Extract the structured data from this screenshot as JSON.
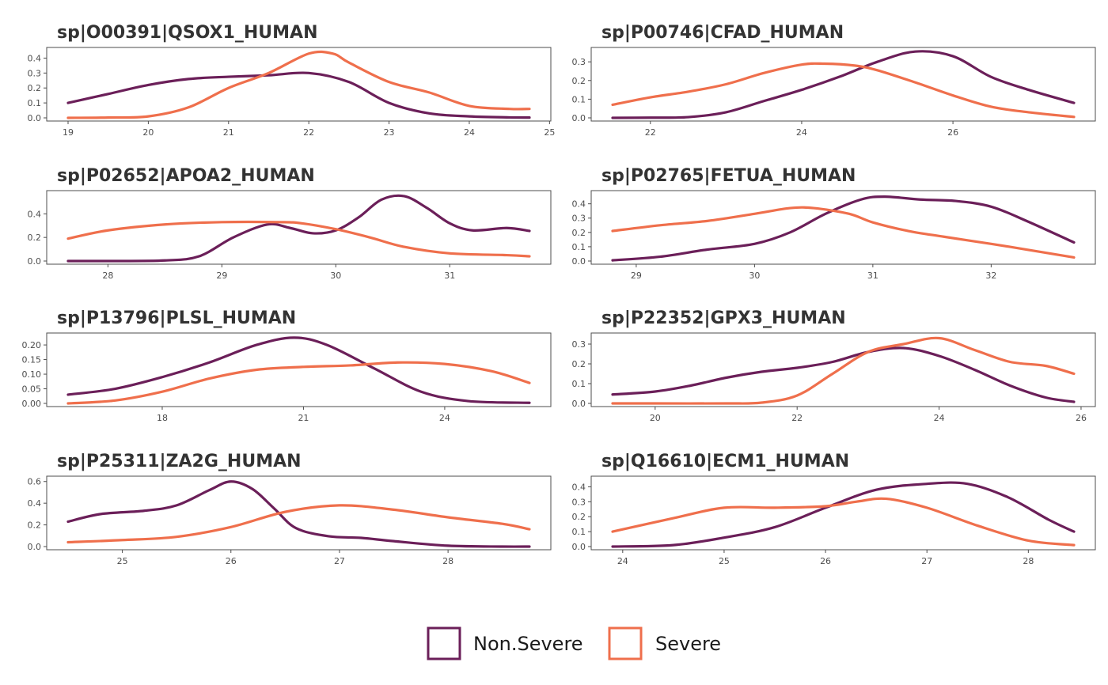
{
  "colors": {
    "non_severe": "#6b1f59",
    "severe": "#ef6f4c"
  },
  "legend": {
    "items": [
      {
        "label": "Non.Severe",
        "color": "#6b1f59"
      },
      {
        "label": "Severe",
        "color": "#ef6f4c"
      }
    ]
  },
  "chart_data": [
    {
      "type": "line",
      "title": "sp|O00391|QSOX1_HUMAN",
      "xlim": [
        19.0,
        24.75
      ],
      "ylim": [
        0,
        0.45
      ],
      "xticks": [
        19,
        20,
        21,
        22,
        23,
        24,
        25
      ],
      "yticks": [
        0.0,
        0.1,
        0.2,
        0.3,
        0.4
      ],
      "ytick_labels": [
        "0.0",
        "0.1",
        "0.2",
        "0.3",
        "0.4"
      ],
      "series": [
        {
          "name": "Non.Severe",
          "x": [
            19.0,
            19.5,
            20.0,
            20.5,
            21.0,
            21.5,
            22.0,
            22.5,
            23.0,
            23.5,
            24.0,
            24.5,
            24.75
          ],
          "y": [
            0.1,
            0.16,
            0.22,
            0.26,
            0.275,
            0.285,
            0.3,
            0.24,
            0.1,
            0.03,
            0.01,
            0.003,
            0.002
          ]
        },
        {
          "name": "Severe",
          "x": [
            19.0,
            19.5,
            20.0,
            20.5,
            21.0,
            21.5,
            22.0,
            22.3,
            22.5,
            23.0,
            23.5,
            24.0,
            24.5,
            24.75
          ],
          "y": [
            0.0,
            0.002,
            0.01,
            0.07,
            0.2,
            0.3,
            0.43,
            0.43,
            0.37,
            0.24,
            0.17,
            0.08,
            0.06,
            0.06
          ]
        }
      ]
    },
    {
      "type": "line",
      "title": "sp|P00746|CFAD_HUMAN",
      "xlim": [
        21.5,
        27.6
      ],
      "ylim": [
        0,
        0.36
      ],
      "xticks": [
        22,
        24,
        26
      ],
      "yticks": [
        0.0,
        0.1,
        0.2,
        0.3
      ],
      "ytick_labels": [
        "0.0",
        "0.1",
        "0.2",
        "0.3"
      ],
      "series": [
        {
          "name": "Non.Severe",
          "x": [
            21.5,
            22.0,
            22.5,
            23.0,
            23.5,
            24.0,
            24.5,
            25.0,
            25.5,
            26.0,
            26.5,
            27.0,
            27.6
          ],
          "y": [
            0.0,
            0.001,
            0.004,
            0.03,
            0.09,
            0.15,
            0.22,
            0.3,
            0.355,
            0.33,
            0.22,
            0.15,
            0.08
          ]
        },
        {
          "name": "Severe",
          "x": [
            21.5,
            22.0,
            22.5,
            23.0,
            23.5,
            24.0,
            24.3,
            24.7,
            25.0,
            25.5,
            26.0,
            26.5,
            27.0,
            27.6
          ],
          "y": [
            0.07,
            0.11,
            0.14,
            0.18,
            0.24,
            0.285,
            0.29,
            0.28,
            0.255,
            0.19,
            0.12,
            0.06,
            0.03,
            0.005
          ]
        }
      ]
    },
    {
      "type": "line",
      "title": "sp|P02652|APOA2_HUMAN",
      "xlim": [
        27.65,
        31.7
      ],
      "ylim": [
        0,
        0.57
      ],
      "xticks": [
        28,
        29,
        30,
        31
      ],
      "yticks": [
        0.0,
        0.2,
        0.4
      ],
      "ytick_labels": [
        "0.0",
        "0.2",
        "0.4"
      ],
      "series": [
        {
          "name": "Non.Severe",
          "x": [
            27.65,
            28.0,
            28.5,
            28.8,
            29.1,
            29.4,
            29.6,
            29.8,
            30.0,
            30.2,
            30.4,
            30.6,
            30.8,
            31.0,
            31.2,
            31.5,
            31.7
          ],
          "y": [
            0.0,
            0.0,
            0.005,
            0.04,
            0.2,
            0.31,
            0.28,
            0.235,
            0.26,
            0.37,
            0.52,
            0.55,
            0.45,
            0.32,
            0.26,
            0.28,
            0.255
          ]
        },
        {
          "name": "Severe",
          "x": [
            27.65,
            28.0,
            28.5,
            29.0,
            29.5,
            29.7,
            30.0,
            30.3,
            30.6,
            31.0,
            31.5,
            31.7
          ],
          "y": [
            0.19,
            0.26,
            0.31,
            0.33,
            0.33,
            0.32,
            0.27,
            0.2,
            0.12,
            0.065,
            0.05,
            0.04
          ]
        }
      ]
    },
    {
      "type": "line",
      "title": "sp|P02765|FETUA_HUMAN",
      "xlim": [
        28.8,
        32.7
      ],
      "ylim": [
        0,
        0.47
      ],
      "xticks": [
        29,
        30,
        31,
        32
      ],
      "yticks": [
        0.0,
        0.1,
        0.2,
        0.3,
        0.4
      ],
      "ytick_labels": [
        "0.0",
        "0.1",
        "0.2",
        "0.3",
        "0.4"
      ],
      "series": [
        {
          "name": "Non.Severe",
          "x": [
            28.8,
            29.2,
            29.6,
            30.0,
            30.3,
            30.6,
            30.9,
            31.1,
            31.4,
            31.7,
            32.0,
            32.3,
            32.7
          ],
          "y": [
            0.005,
            0.03,
            0.08,
            0.12,
            0.2,
            0.33,
            0.43,
            0.45,
            0.43,
            0.42,
            0.38,
            0.28,
            0.13
          ]
        },
        {
          "name": "Severe",
          "x": [
            28.8,
            29.2,
            29.6,
            30.0,
            30.3,
            30.5,
            30.8,
            31.0,
            31.3,
            31.6,
            32.0,
            32.3,
            32.7
          ],
          "y": [
            0.21,
            0.25,
            0.28,
            0.33,
            0.37,
            0.37,
            0.33,
            0.27,
            0.21,
            0.17,
            0.12,
            0.08,
            0.025
          ]
        }
      ]
    },
    {
      "type": "line",
      "title": "sp|P13796|PLSL_HUMAN",
      "xlim": [
        16.0,
        25.8
      ],
      "ylim": [
        0,
        0.23
      ],
      "xticks": [
        18,
        21,
        24
      ],
      "yticks": [
        0.0,
        0.05,
        0.1,
        0.15,
        0.2
      ],
      "ytick_labels": [
        "0.00",
        "0.05",
        "0.10",
        "0.15",
        "0.20"
      ],
      "series": [
        {
          "name": "Non.Severe",
          "x": [
            16.0,
            17.0,
            18.0,
            19.0,
            20.0,
            20.8,
            21.5,
            22.5,
            23.5,
            24.5,
            25.8
          ],
          "y": [
            0.03,
            0.05,
            0.09,
            0.14,
            0.2,
            0.225,
            0.2,
            0.12,
            0.04,
            0.008,
            0.002
          ]
        },
        {
          "name": "Severe",
          "x": [
            16.0,
            17.0,
            18.0,
            19.0,
            20.0,
            21.0,
            22.0,
            23.0,
            24.0,
            25.0,
            25.8
          ],
          "y": [
            0.0,
            0.01,
            0.04,
            0.085,
            0.115,
            0.125,
            0.13,
            0.14,
            0.135,
            0.11,
            0.07
          ]
        }
      ]
    },
    {
      "type": "line",
      "title": "sp|P22352|GPX3_HUMAN",
      "xlim": [
        19.4,
        25.9
      ],
      "ylim": [
        0,
        0.34
      ],
      "xticks": [
        20,
        22,
        24,
        26
      ],
      "yticks": [
        0.0,
        0.1,
        0.2,
        0.3
      ],
      "ytick_labels": [
        "0.0",
        "0.1",
        "0.2",
        "0.3"
      ],
      "series": [
        {
          "name": "Non.Severe",
          "x": [
            19.4,
            20.0,
            20.5,
            21.0,
            21.5,
            22.0,
            22.5,
            23.0,
            23.5,
            24.0,
            24.5,
            25.0,
            25.5,
            25.9
          ],
          "y": [
            0.045,
            0.06,
            0.09,
            0.13,
            0.16,
            0.18,
            0.21,
            0.26,
            0.28,
            0.24,
            0.17,
            0.09,
            0.03,
            0.008
          ]
        },
        {
          "name": "Severe",
          "x": [
            19.4,
            20.0,
            21.0,
            21.5,
            22.0,
            22.5,
            23.0,
            23.5,
            24.0,
            24.5,
            25.0,
            25.5,
            25.9
          ],
          "y": [
            0.0,
            0.0,
            0.0,
            0.004,
            0.04,
            0.15,
            0.26,
            0.3,
            0.33,
            0.27,
            0.21,
            0.19,
            0.15
          ]
        }
      ]
    },
    {
      "type": "line",
      "title": "sp|P25311|ZA2G_HUMAN",
      "xlim": [
        24.5,
        28.75
      ],
      "ylim": [
        0,
        0.62
      ],
      "xticks": [
        25,
        26,
        27,
        28
      ],
      "yticks": [
        0.0,
        0.2,
        0.4,
        0.6
      ],
      "ytick_labels": [
        "0.0",
        "0.2",
        "0.4",
        "0.6"
      ],
      "series": [
        {
          "name": "Non.Severe",
          "x": [
            24.5,
            24.8,
            25.2,
            25.5,
            25.8,
            26.0,
            26.2,
            26.4,
            26.6,
            26.9,
            27.2,
            27.5,
            28.0,
            28.5,
            28.75
          ],
          "y": [
            0.23,
            0.3,
            0.33,
            0.38,
            0.52,
            0.6,
            0.53,
            0.35,
            0.17,
            0.095,
            0.08,
            0.05,
            0.008,
            0.0,
            0.0
          ]
        },
        {
          "name": "Severe",
          "x": [
            24.5,
            25.0,
            25.5,
            26.0,
            26.5,
            27.0,
            27.5,
            28.0,
            28.5,
            28.75
          ],
          "y": [
            0.04,
            0.06,
            0.09,
            0.18,
            0.32,
            0.38,
            0.34,
            0.27,
            0.21,
            0.16
          ]
        }
      ]
    },
    {
      "type": "line",
      "title": "sp|Q16610|ECM1_HUMAN",
      "xlim": [
        23.9,
        28.45
      ],
      "ylim": [
        0,
        0.45
      ],
      "xticks": [
        24,
        25,
        26,
        27,
        28
      ],
      "yticks": [
        0.0,
        0.1,
        0.2,
        0.3,
        0.4
      ],
      "ytick_labels": [
        "0.0",
        "0.1",
        "0.2",
        "0.3",
        "0.4"
      ],
      "series": [
        {
          "name": "Non.Severe",
          "x": [
            23.9,
            24.5,
            25.0,
            25.5,
            26.0,
            26.5,
            27.0,
            27.4,
            27.8,
            28.2,
            28.45
          ],
          "y": [
            0.0,
            0.01,
            0.06,
            0.13,
            0.26,
            0.38,
            0.42,
            0.42,
            0.33,
            0.18,
            0.1
          ]
        },
        {
          "name": "Severe",
          "x": [
            23.9,
            24.5,
            25.0,
            25.5,
            26.0,
            26.3,
            26.6,
            27.0,
            27.5,
            28.0,
            28.45
          ],
          "y": [
            0.1,
            0.19,
            0.26,
            0.26,
            0.27,
            0.3,
            0.32,
            0.26,
            0.14,
            0.04,
            0.01
          ]
        }
      ]
    }
  ]
}
